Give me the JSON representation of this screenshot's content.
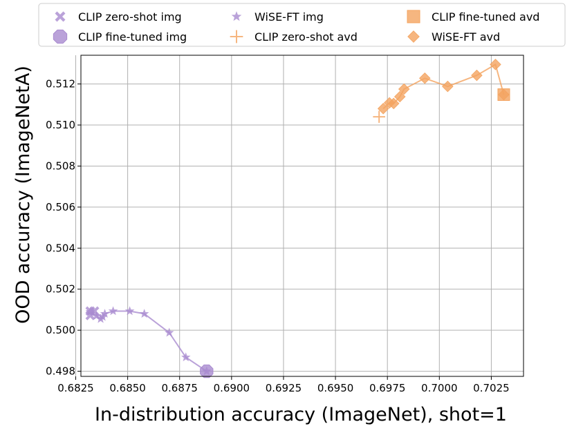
{
  "chart_data": {
    "type": "scatter",
    "title": "",
    "xlabel": "In-distribution accuracy (ImageNet), shot=1",
    "ylabel": "OOD accuracy (ImageNetA)",
    "xlim": [
      0.68275,
      0.70405
    ],
    "ylim": [
      0.49775,
      0.5134
    ],
    "xticks": [
      0.6825,
      0.685,
      0.6875,
      0.69,
      0.6925,
      0.695,
      0.6975,
      0.7,
      0.7025
    ],
    "xtick_labels": [
      "0.6825",
      "0.6850",
      "0.6875",
      "0.6900",
      "0.6925",
      "0.6950",
      "0.6975",
      "0.7000",
      "0.7025"
    ],
    "yticks": [
      0.498,
      0.5,
      0.502,
      0.504,
      0.506,
      0.508,
      0.51,
      0.512
    ],
    "ytick_labels": [
      "0.498",
      "0.500",
      "0.502",
      "0.504",
      "0.506",
      "0.508",
      "0.510",
      "0.512"
    ],
    "grid": true,
    "legend_position": "top",
    "colors": {
      "purple": "#a98bd0",
      "orange": "#f4a460"
    },
    "series": [
      {
        "name": "CLIP zero-shot img",
        "marker": "X",
        "color": "#a98bd0",
        "line": false,
        "points": [
          [
            0.6832,
            0.50093
          ],
          [
            0.6834,
            0.50093
          ],
          [
            0.6832,
            0.50072
          ]
        ]
      },
      {
        "name": "CLIP fine-tuned img",
        "marker": "octagon",
        "color": "#a98bd0",
        "line": false,
        "points": [
          [
            0.6888,
            0.498
          ]
        ]
      },
      {
        "name": "WiSE-FT img",
        "marker": "star",
        "color": "#a98bd0",
        "line": true,
        "points": [
          [
            0.6832,
            0.5009
          ],
          [
            0.6835,
            0.5007
          ],
          [
            0.6837,
            0.50055
          ],
          [
            0.6838,
            0.50065
          ],
          [
            0.6839,
            0.5008
          ],
          [
            0.6843,
            0.50093
          ],
          [
            0.6851,
            0.50093
          ],
          [
            0.6858,
            0.5008
          ],
          [
            0.687,
            0.49988
          ],
          [
            0.6878,
            0.49868
          ],
          [
            0.6888,
            0.498
          ]
        ]
      },
      {
        "name": "CLIP zero-shot avd",
        "marker": "plus",
        "color": "#f4a460",
        "line": false,
        "points": [
          [
            0.6971,
            0.5104
          ]
        ]
      },
      {
        "name": "CLIP fine-tuned avd",
        "marker": "square",
        "color": "#f4a460",
        "line": false,
        "points": [
          [
            0.7031,
            0.51148
          ]
        ]
      },
      {
        "name": "WiSE-FT avd",
        "marker": "diamond",
        "color": "#f4a460",
        "line": true,
        "points": [
          [
            0.6973,
            0.5108
          ],
          [
            0.6976,
            0.51108
          ],
          [
            0.6978,
            0.51105
          ],
          [
            0.6981,
            0.51138
          ],
          [
            0.6983,
            0.51175
          ],
          [
            0.6993,
            0.51228
          ],
          [
            0.7004,
            0.51188
          ],
          [
            0.7018,
            0.51242
          ],
          [
            0.7027,
            0.51295
          ],
          [
            0.7031,
            0.51148
          ]
        ]
      }
    ]
  }
}
